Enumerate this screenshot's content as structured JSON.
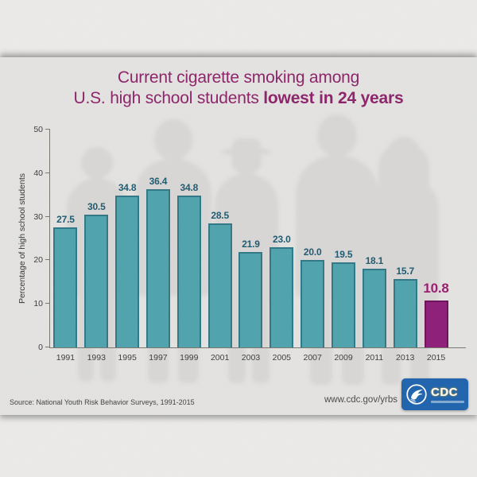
{
  "title": {
    "line1": "Current cigarette smoking among",
    "line2_regular": "U.S. high school students",
    "line2_bold": "lowest in 24 years"
  },
  "chart_data": {
    "type": "bar",
    "title": "Current cigarette smoking among U.S. high school students lowest in 24 years",
    "categories": [
      "1991",
      "1993",
      "1995",
      "1997",
      "1999",
      "2001",
      "2003",
      "2005",
      "2007",
      "2009",
      "2011",
      "2013",
      "2015"
    ],
    "values": [
      27.5,
      30.5,
      34.8,
      36.4,
      34.8,
      28.5,
      21.9,
      23.0,
      20.0,
      19.5,
      18.1,
      15.7,
      10.8
    ],
    "value_labels": [
      "27.5",
      "30.5",
      "34.8",
      "36.4",
      "34.8",
      "28.5",
      "21.9",
      "23.0",
      "20.0",
      "19.5",
      "18.1",
      "15.7",
      "10.8"
    ],
    "ylabel": "Percentage of high school students",
    "xlabel": "",
    "ylim": [
      0,
      50
    ],
    "yticks": [
      "0",
      "10",
      "20",
      "30",
      "40",
      "50"
    ],
    "grid": false,
    "legend": "none",
    "highlight_index": 12,
    "colors": {
      "bar_fill": "#4EA3AD",
      "bar_border": "#2F7787",
      "value_label": "#1D5970",
      "highlight_fill": "#8E1D78",
      "highlight_border": "#6D1058",
      "highlight_value_label": "#991B6E",
      "axis": "#77776F",
      "tick_label": "#3C3C3C",
      "title": "#8C2269"
    }
  },
  "footer": {
    "source": "Source: National Youth Risk Behavior Surveys, 1991-2015",
    "url": "www.cdc.gov/yrbs"
  },
  "logo": {
    "text": "CDC"
  }
}
